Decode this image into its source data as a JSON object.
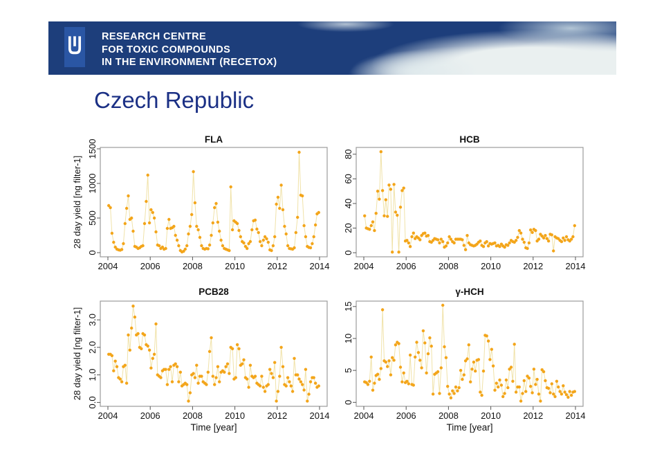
{
  "slide": {
    "banner": {
      "org_lines": [
        "RESEARCH CENTRE",
        "FOR TOXIC COMPOUNDS",
        "IN THE ENVIRONMENT (RECETOX)"
      ],
      "colors": {
        "background": "#1D3E7B",
        "logo_tile": "#2A56A4",
        "text": "#FFFFFF"
      }
    },
    "title": "Czech Republic",
    "title_color": "#1B3085"
  },
  "chart_style": {
    "point_color": "#F3A51A",
    "line_color": "#F0E2A8",
    "frame_color": "#9B9B9B",
    "tick_color": "#555555",
    "label_color": "#111111"
  },
  "chart_data": [
    {
      "type": "line",
      "title": "FLA",
      "ylabel": "28 day yield [ng filter-1]",
      "xlabel": "",
      "xlim": [
        2003.64,
        2014.36
      ],
      "ylim": [
        -60,
        1520
      ],
      "xticks": [
        2004,
        2006,
        2008,
        2010,
        2012,
        2014
      ],
      "xtick_labels": [
        "2004",
        "2006",
        "2008",
        "2010",
        "2012",
        "2014"
      ],
      "yticks": [
        0,
        500,
        1000,
        1500
      ],
      "ytick_labels": [
        "0",
        "500",
        "1000",
        "1500"
      ],
      "x_start": 2004.04,
      "x_step": 0.0769,
      "values": [
        680,
        650,
        280,
        150,
        80,
        50,
        40,
        35,
        45,
        130,
        420,
        640,
        820,
        480,
        500,
        310,
        90,
        80,
        60,
        70,
        90,
        100,
        420,
        740,
        1120,
        430,
        620,
        580,
        500,
        300,
        110,
        100,
        60,
        80,
        50,
        60,
        350,
        480,
        350,
        360,
        380,
        250,
        180,
        100,
        30,
        10,
        20,
        50,
        100,
        270,
        380,
        550,
        1170,
        720,
        380,
        330,
        220,
        100,
        60,
        50,
        60,
        55,
        110,
        250,
        430,
        650,
        710,
        440,
        310,
        180,
        100,
        60,
        50,
        40,
        30,
        950,
        330,
        460,
        440,
        420,
        320,
        230,
        160,
        140,
        90,
        60,
        130,
        160,
        330,
        460,
        470,
        340,
        290,
        160,
        100,
        180,
        230,
        200,
        150,
        40,
        30,
        100,
        230,
        700,
        800,
        640,
        975,
        620,
        380,
        270,
        100,
        60,
        55,
        50,
        70,
        290,
        510,
        1450,
        830,
        820,
        390,
        230,
        90,
        75,
        70,
        130,
        230,
        400,
        560,
        580
      ]
    },
    {
      "type": "line",
      "title": "HCB",
      "ylabel": "",
      "xlabel": "",
      "xlim": [
        2003.64,
        2014.36
      ],
      "ylim": [
        -3.3,
        85.5
      ],
      "xticks": [
        2004,
        2006,
        2008,
        2010,
        2012,
        2014
      ],
      "xtick_labels": [
        "2004",
        "2006",
        "2008",
        "2010",
        "2012",
        "2014"
      ],
      "yticks": [
        0,
        20,
        40,
        60,
        80
      ],
      "ytick_labels": [
        "0",
        "20",
        "40",
        "60",
        "80"
      ],
      "x_start": 2004.04,
      "x_step": 0.0769,
      "values": [
        30,
        20,
        19.5,
        19,
        22,
        25,
        18,
        32,
        50,
        43.5,
        82,
        50.5,
        30,
        43,
        29.5,
        55,
        51.5,
        0.5,
        55.5,
        33,
        30.5,
        0.5,
        37,
        50.5,
        52.5,
        9.5,
        10,
        8,
        5,
        13,
        16,
        11.5,
        13,
        12,
        10.5,
        14,
        15.5,
        16,
        13.5,
        14,
        9,
        8.5,
        10,
        11.5,
        11,
        10.5,
        8,
        11,
        9,
        4.5,
        5.5,
        8,
        13,
        11,
        9,
        8,
        11,
        11,
        11,
        11,
        10.5,
        6,
        2.5,
        14,
        8,
        6.5,
        6,
        5.5,
        6,
        7,
        8.5,
        9.5,
        6,
        5,
        8,
        9,
        5.5,
        7.5,
        7,
        7.5,
        8,
        5.5,
        6,
        5,
        7,
        5.5,
        4.5,
        6.5,
        6,
        8,
        10,
        9,
        8.5,
        10,
        12.5,
        18,
        16,
        11,
        8.5,
        4,
        3.5,
        8,
        18.5,
        16.5,
        19,
        18,
        9.5,
        11,
        15,
        13.5,
        12,
        14,
        11.5,
        9.5,
        15,
        14.5,
        1.5,
        13,
        12,
        11.5,
        10,
        9,
        12,
        10,
        13,
        10.5,
        9.5,
        11,
        13,
        22
      ]
    },
    {
      "type": "line",
      "title": "PCB28",
      "ylabel": "28 day yield [ng filter-1]",
      "xlabel": "Time [year]",
      "xlim": [
        2003.64,
        2014.36
      ],
      "ylim": [
        -0.14,
        3.68
      ],
      "xticks": [
        2004,
        2006,
        2008,
        2010,
        2012,
        2014
      ],
      "xtick_labels": [
        "2004",
        "2006",
        "2008",
        "2010",
        "2012",
        "2014"
      ],
      "yticks": [
        0,
        1,
        2,
        3
      ],
      "ytick_labels": [
        "0.0",
        "1.0",
        "2.0",
        "3.0"
      ],
      "x_start": 2004.04,
      "x_step": 0.0769,
      "values": [
        1.75,
        1.75,
        1.7,
        1.15,
        1.5,
        1.3,
        0.9,
        0.85,
        0.75,
        1.3,
        1.35,
        0.7,
        2.45,
        1.9,
        2.7,
        3.5,
        3.1,
        2.45,
        2.5,
        2.0,
        1.95,
        2.5,
        2.45,
        2.1,
        2.05,
        1.9,
        1.25,
        1.6,
        1.75,
        2.85,
        1.0,
        0.95,
        0.9,
        1.15,
        1.2,
        1.2,
        0.65,
        1.2,
        1.3,
        0.75,
        1.35,
        1.4,
        1.3,
        0.75,
        1.1,
        0.6,
        0.65,
        0.7,
        0.65,
        0.05,
        0.35,
        1.0,
        1.05,
        0.9,
        1.35,
        0.7,
        0.95,
        0.95,
        0.75,
        0.7,
        0.65,
        1.1,
        1.85,
        2.35,
        0.95,
        0.65,
        0.9,
        1.3,
        0.75,
        1.1,
        1.15,
        1.1,
        1.3,
        1.4,
        1.05,
        2.0,
        1.95,
        0.85,
        0.9,
        2.1,
        1.95,
        1.35,
        1.4,
        1.55,
        0.9,
        0.85,
        0.55,
        1.35,
        0.95,
        0.9,
        0.95,
        0.7,
        0.65,
        0.6,
        0.95,
        0.55,
        0.4,
        0.6,
        0.65,
        1.2,
        1.05,
        0.9,
        1.45,
        0.05,
        0.4,
        0.95,
        2.0,
        1.3,
        0.65,
        0.6,
        0.9,
        0.75,
        0.6,
        0.4,
        1.6,
        1.0,
        1.0,
        0.85,
        0.75,
        0.65,
        0.45,
        1.2,
        0.05,
        0.3,
        0.75,
        0.9,
        0.9,
        0.7,
        0.55,
        0.6
      ]
    },
    {
      "type": "line",
      "title": "γ-HCH",
      "ylabel": "",
      "xlabel": "Time [year]",
      "xlim": [
        2003.64,
        2014.36
      ],
      "ylim": [
        -0.62,
        15.85
      ],
      "xticks": [
        2004,
        2006,
        2008,
        2010,
        2012,
        2014
      ],
      "xtick_labels": [
        "2004",
        "2006",
        "2008",
        "2010",
        "2012",
        "2014"
      ],
      "yticks": [
        0,
        5,
        10,
        15
      ],
      "ytick_labels": [
        "0",
        "5",
        "10",
        "15"
      ],
      "x_start": 2004.04,
      "x_step": 0.0769,
      "values": [
        3.2,
        3.1,
        2.8,
        3.3,
        7.1,
        1.9,
        3.0,
        4.2,
        4.4,
        3.6,
        5.3,
        14.5,
        6.5,
        6.3,
        5.6,
        6.5,
        4.3,
        7.0,
        6.6,
        9.0,
        9.4,
        9.2,
        5.5,
        3.2,
        4.6,
        3.1,
        3.3,
        2.9,
        7.4,
        2.8,
        2.7,
        7.1,
        9.4,
        7.8,
        6.6,
        5.4,
        11.2,
        9.3,
        4.6,
        7.6,
        10.1,
        8.8,
        1.3,
        4.4,
        4.6,
        4.8,
        1.4,
        5.4,
        15.2,
        8.7,
        7.0,
        2.5,
        1.3,
        0.7,
        1.8,
        1.4,
        2.4,
        1.8,
        2.3,
        5.0,
        3.6,
        4.3,
        6.5,
        6.8,
        9.0,
        3.2,
        5.2,
        6.3,
        4.9,
        6.6,
        6.7,
        1.6,
        1.1,
        4.9,
        10.5,
        10.4,
        9.6,
        6.7,
        8.3,
        5.7,
        1.9,
        3.0,
        2.4,
        3.5,
        2.7,
        0.9,
        1.4,
        3.5,
        2.3,
        5.2,
        5.5,
        3.3,
        9.1,
        1.6,
        2.4,
        2.4,
        0.2,
        1.4,
        3.4,
        1.7,
        4.1,
        3.8,
        2.5,
        1.5,
        5.2,
        2.8,
        3.6,
        1.3,
        0.2,
        5.1,
        4.8,
        3.4,
        2.3,
        2.2,
        1.5,
        2.9,
        1.3,
        0.9,
        3.3,
        2.4,
        1.7,
        1.3,
        2.6,
        1.6,
        1.2,
        0.8,
        1.7,
        1.1,
        1.6,
        1.7
      ]
    }
  ]
}
